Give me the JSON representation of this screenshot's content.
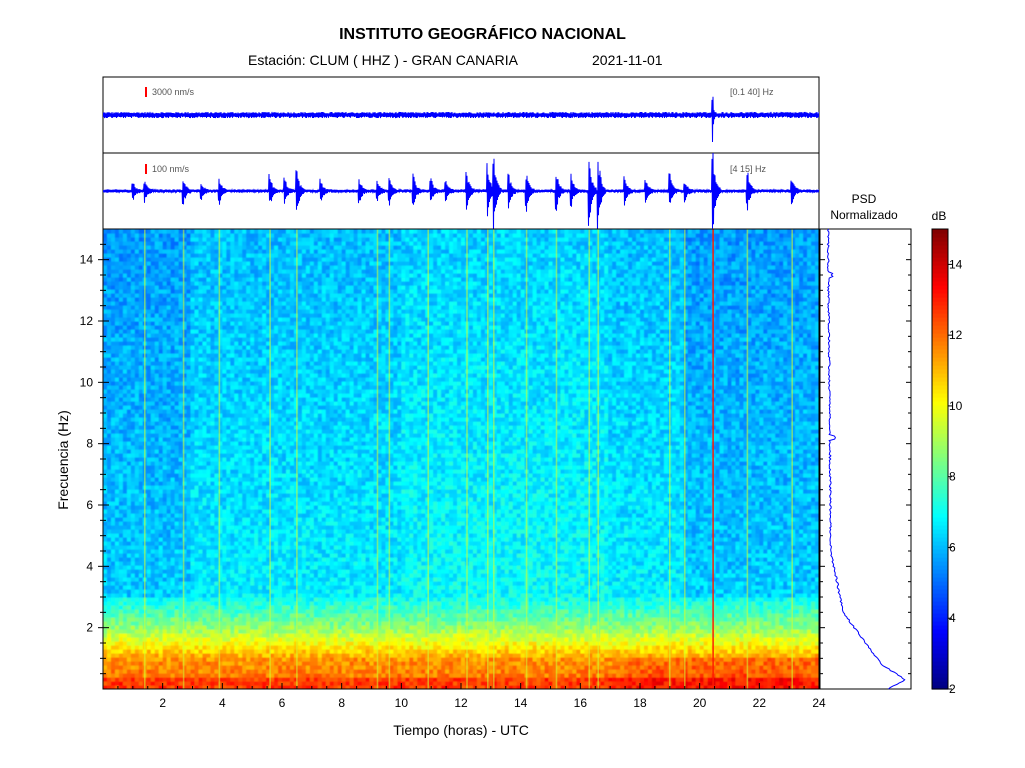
{
  "header": {
    "title": "INSTITUTO GEOGRÁFICO NACIONAL",
    "station": "Estación:  CLUM ( HHZ ) - GRAN CANARIA",
    "date": "2021-11-01"
  },
  "colors": {
    "trace": "#0000ff",
    "scale_bar": "#ff0000",
    "colormap": [
      "#00007f",
      "#0000ff",
      "#007fff",
      "#00ffff",
      "#7fff7f",
      "#ffff00",
      "#ff7f00",
      "#ff0000",
      "#7f0000"
    ]
  },
  "chart_data": [
    {
      "type": "line",
      "panel": "seismogram-broadband",
      "scale_label": "3000 nm/s",
      "filter_label": "[0.1 40] Hz",
      "x_range": [
        0,
        24
      ],
      "events": [
        {
          "time": 20.45,
          "amplitude": 0.9
        }
      ]
    },
    {
      "type": "line",
      "panel": "seismogram-filtered",
      "scale_label": "100 nm/s",
      "filter_label": "[4 15] Hz",
      "x_range": [
        0,
        24
      ],
      "events": [
        {
          "time": 1.0,
          "amplitude": 0.25
        },
        {
          "time": 1.4,
          "amplitude": 0.3
        },
        {
          "time": 2.7,
          "amplitude": 0.35
        },
        {
          "time": 3.3,
          "amplitude": 0.2
        },
        {
          "time": 3.9,
          "amplitude": 0.35
        },
        {
          "time": 5.6,
          "amplitude": 0.4
        },
        {
          "time": 6.1,
          "amplitude": 0.3
        },
        {
          "time": 6.5,
          "amplitude": 0.6
        },
        {
          "time": 7.3,
          "amplitude": 0.3
        },
        {
          "time": 8.6,
          "amplitude": 0.3
        },
        {
          "time": 9.2,
          "amplitude": 0.25
        },
        {
          "time": 9.6,
          "amplitude": 0.35
        },
        {
          "time": 10.4,
          "amplitude": 0.45
        },
        {
          "time": 11.0,
          "amplitude": 0.3
        },
        {
          "time": 11.5,
          "amplitude": 0.25
        },
        {
          "time": 12.2,
          "amplitude": 0.45
        },
        {
          "time": 12.9,
          "amplitude": 0.75
        },
        {
          "time": 13.1,
          "amplitude": 1.0
        },
        {
          "time": 13.6,
          "amplitude": 0.45
        },
        {
          "time": 14.2,
          "amplitude": 0.5
        },
        {
          "time": 15.2,
          "amplitude": 0.5
        },
        {
          "time": 15.7,
          "amplitude": 0.4
        },
        {
          "time": 16.3,
          "amplitude": 0.85
        },
        {
          "time": 16.6,
          "amplitude": 1.0
        },
        {
          "time": 17.5,
          "amplitude": 0.35
        },
        {
          "time": 18.2,
          "amplitude": 0.3
        },
        {
          "time": 19.0,
          "amplitude": 0.45
        },
        {
          "time": 19.5,
          "amplitude": 0.3
        },
        {
          "time": 20.45,
          "amplitude": 1.0
        },
        {
          "time": 21.6,
          "amplitude": 0.55
        },
        {
          "time": 23.1,
          "amplitude": 0.35
        }
      ]
    },
    {
      "type": "heatmap",
      "panel": "spectrogram",
      "xlabel": "Tiempo (horas) - UTC",
      "ylabel": "Frecuencia  (Hz)",
      "x_range": [
        0,
        24
      ],
      "y_range": [
        0,
        15
      ],
      "x_ticks": [
        2,
        4,
        6,
        8,
        10,
        12,
        14,
        16,
        18,
        20,
        22,
        24
      ],
      "y_ticks": [
        2,
        4,
        6,
        8,
        10,
        12,
        14
      ],
      "vertical_streaks": [
        1.4,
        2.7,
        3.9,
        5.6,
        6.5,
        9.2,
        9.6,
        10.9,
        12.2,
        12.9,
        13.1,
        14.2,
        15.2,
        16.3,
        16.6,
        19.0,
        19.5,
        20.45,
        21.6,
        23.1
      ],
      "low_frequency_band_hz": [
        0,
        2
      ]
    },
    {
      "type": "line",
      "panel": "psd",
      "title": "PSD\nNormalizado",
      "title_line1": "PSD",
      "title_line2": "Normalizado",
      "y_range": [
        0,
        15
      ]
    },
    {
      "type": "colorbar",
      "panel": "colorbar",
      "label": "dB",
      "range": [
        2,
        15
      ],
      "ticks": [
        2,
        4,
        6,
        8,
        10,
        12,
        14
      ]
    }
  ]
}
